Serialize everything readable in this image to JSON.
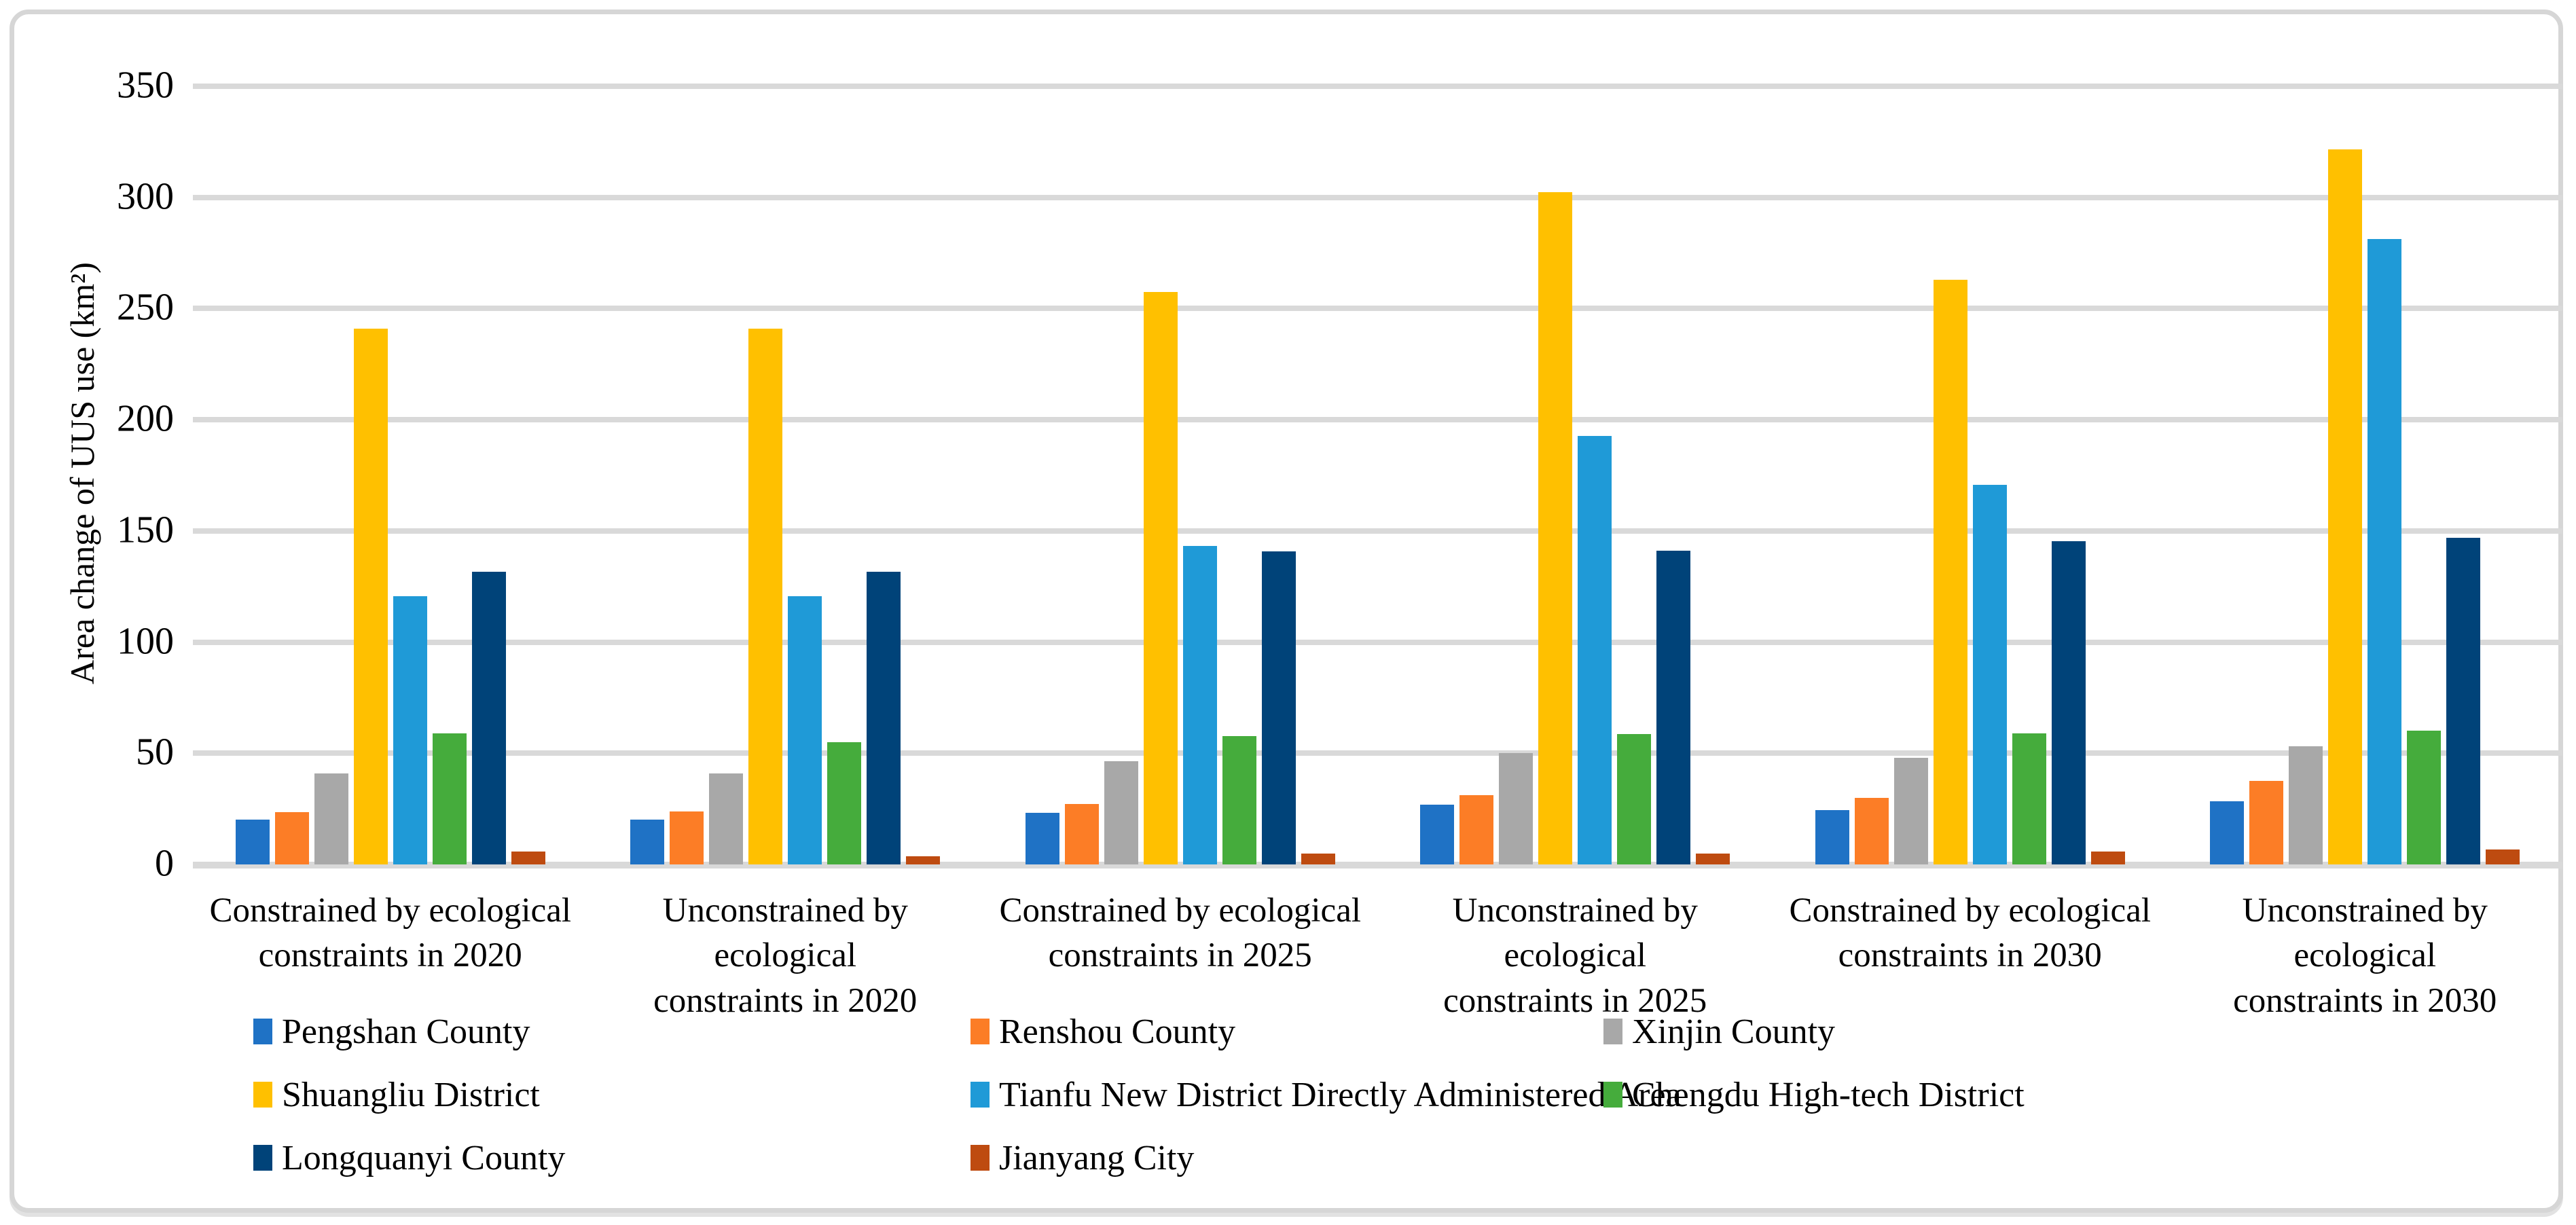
{
  "figure": {
    "background": "#FFFFFF",
    "border_color": "#D6D6D6"
  },
  "chart_data": {
    "type": "bar",
    "title": "",
    "xlabel": "",
    "ylabel": "Area change of UUS use (km²)",
    "ylim": [
      0,
      350
    ],
    "yticks": [
      0,
      50,
      100,
      150,
      200,
      250,
      300,
      350
    ],
    "grid": true,
    "gridline_color": "#D9D9D9",
    "legend_position": "bottom",
    "categories": [
      "Constrained by ecological constraints in 2020",
      "Unconstrained by ecological constraints in 2020",
      "Constrained by ecological constraints in 2025",
      "Unconstrained by ecological constraints in 2025",
      "Constrained by ecological constraints in 2030",
      "Unconstrained by ecological constraints in 2030"
    ],
    "series": [
      {
        "name": "Pengshan County",
        "color": "#1F72C5",
        "values": [
          20.3,
          20.3,
          23.2,
          27.0,
          24.3,
          28.3
        ]
      },
      {
        "name": "Renshou County",
        "color": "#FC7D26",
        "values": [
          23.5,
          23.7,
          27.1,
          31.2,
          29.8,
          37.6
        ]
      },
      {
        "name": "Xinjin County",
        "color": "#A8A8A8",
        "values": [
          41.0,
          41.0,
          46.5,
          50.0,
          48.0,
          53.0
        ]
      },
      {
        "name": "Shuangliu District",
        "color": "#FFC000",
        "values": [
          240.9,
          240.9,
          257.4,
          302.3,
          262.9,
          321.5
        ]
      },
      {
        "name": "Tianfu New District Directly Administered Area",
        "color": "#1F9AD7",
        "values": [
          120.7,
          120.7,
          143.3,
          192.8,
          170.8,
          281.3
        ]
      },
      {
        "name": "Chengdu High-tech District",
        "color": "#45AC3C",
        "values": [
          58.8,
          55.0,
          57.8,
          58.5,
          58.8,
          60.2
        ]
      },
      {
        "name": "Longquanyi County",
        "color": "#004379",
        "values": [
          131.6,
          131.6,
          140.7,
          141.2,
          145.5,
          147.0
        ]
      },
      {
        "name": "Jianyang City",
        "color": "#BE4B10",
        "values": [
          5.8,
          3.6,
          4.9,
          4.8,
          5.8,
          6.7
        ]
      }
    ]
  }
}
